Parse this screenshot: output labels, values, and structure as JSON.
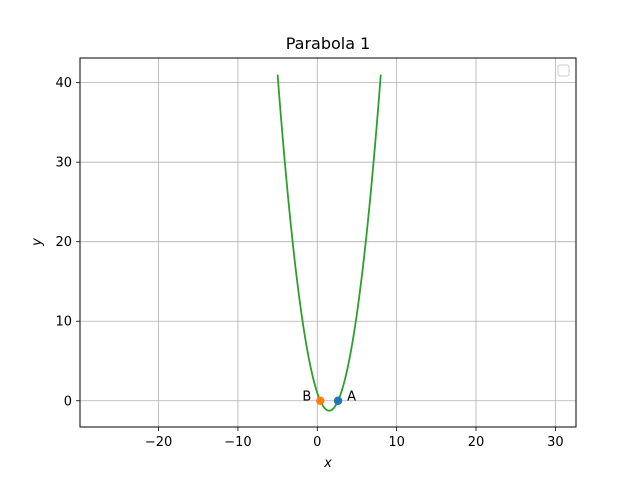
{
  "chart_data": {
    "type": "line",
    "title": "Parabola 1",
    "xlabel": "x",
    "ylabel": "y",
    "xlim": [
      -29.9,
      32.6
    ],
    "ylim": [
      -3.3,
      43.1
    ],
    "xticks": [
      -20,
      -10,
      0,
      10,
      20,
      30
    ],
    "yticks": [
      0,
      10,
      20,
      30,
      40
    ],
    "xtick_labels": [
      "−20",
      "−10",
      "0",
      "10",
      "20",
      "30"
    ],
    "ytick_labels": [
      "0",
      "10",
      "20",
      "30",
      "40"
    ],
    "grid": true,
    "legend": {
      "position": "top-right",
      "entries": []
    },
    "series": [
      {
        "kind": "curve",
        "equation": {
          "a": 1,
          "b": -3,
          "c": 1
        },
        "x_range": [
          -5,
          8
        ],
        "color": "#2ca02c"
      }
    ],
    "points": [
      {
        "label": "A",
        "x": 2.62,
        "y": 0,
        "color": "#1f77b4",
        "label_side": "right"
      },
      {
        "label": "B",
        "x": 0.38,
        "y": 0,
        "color": "#ff7f0e",
        "label_side": "left"
      }
    ]
  }
}
